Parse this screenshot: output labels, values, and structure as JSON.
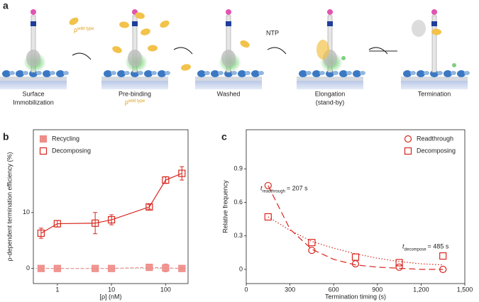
{
  "panels": [
    "a",
    "b",
    "c"
  ],
  "scheme": {
    "reagent": {
      "symbol": "ρ",
      "superscript": "wild type"
    },
    "ntp": "NTP",
    "steps": [
      {
        "label": [
          "Surface",
          "Immobilization"
        ]
      },
      {
        "label": [
          "Pre-binding"
        ]
      },
      {
        "label": [
          "Washed"
        ]
      },
      {
        "label": [
          "Elongation",
          "(stand-by)"
        ]
      },
      {
        "label": [
          "Termination"
        ]
      }
    ]
  },
  "chart_data": [
    {
      "type": "line",
      "x_label": "[ρ] (nM)",
      "y_label": "ρ-dependent termination efficiency (%)",
      "log_x": true,
      "xlim": [
        0.36,
        260
      ],
      "xticks": [
        1,
        10,
        100
      ],
      "ylim": [
        -2.7,
        24.8
      ],
      "yticks": [
        0,
        10
      ],
      "zero_line": true,
      "legend": "top-left",
      "x": [
        0.5,
        1,
        5,
        10,
        50,
        100,
        200
      ],
      "series": [
        {
          "name": "Recycling",
          "color": "#ef8c88",
          "marker": "square",
          "filled": true,
          "dash": "4 3",
          "values": [
            0,
            0,
            0,
            0,
            0.2,
            0.1,
            0
          ],
          "errors": [
            0.3,
            0,
            0,
            0,
            0.5,
            0.7,
            0.2
          ]
        },
        {
          "name": "Decomposing",
          "color": "#d7261e",
          "marker": "square",
          "filled": false,
          "values": [
            6.3,
            8,
            8.1,
            8.7,
            11,
            15.8,
            17
          ],
          "errors": [
            0.9,
            0.6,
            1.9,
            0.9,
            0.4,
            0.6,
            1.2
          ]
        }
      ]
    },
    {
      "type": "scatter",
      "x_label": "Termination timing (s)",
      "y_label": "Relative frequency",
      "xlim": [
        0,
        1500
      ],
      "xticks": [
        0,
        300,
        600,
        900,
        {
          "value": 1200,
          "label": "1,200"
        },
        {
          "value": 1500,
          "label": "1,500"
        }
      ],
      "ylim": [
        -0.127,
        1.25
      ],
      "yticks": [
        0,
        0.3,
        0.6,
        0.9
      ],
      "legend": "top-right",
      "x": [
        150,
        450,
        750,
        1050,
        1350
      ],
      "series": [
        {
          "name": "Readthrough",
          "color": "#d7261e",
          "marker": "circle",
          "filled": false,
          "values": [
            0.75,
            0.17,
            0.05,
            0.02,
            0.0
          ]
        },
        {
          "name": "Decomposing",
          "color": "#d7261e",
          "marker": "square",
          "filled": false,
          "values": [
            0.47,
            0.24,
            0.11,
            0.06,
            0.12
          ]
        }
      ],
      "fits": [
        {
          "color": "#d7261e",
          "dash": "9 5",
          "x": [
            150,
            300,
            450,
            600,
            750,
            900,
            1050,
            1200,
            1350
          ],
          "values": [
            0.75,
            0.36,
            0.18,
            0.09,
            0.04,
            0.02,
            0.01,
            0.0,
            0.0
          ]
        },
        {
          "color": "#d7261e",
          "dash": "1.5 2.5",
          "x": [
            150,
            300,
            450,
            600,
            750,
            900,
            1050,
            1200,
            1350
          ],
          "values": [
            0.47,
            0.35,
            0.25,
            0.19,
            0.14,
            0.1,
            0.07,
            0.05,
            0.04
          ]
        }
      ],
      "annotations": [
        {
          "symbol": "t",
          "subscript": "readthrough",
          "text": "= 207 s"
        },
        {
          "symbol": "t",
          "subscript": "decompose",
          "text": "= 485 s"
        }
      ]
    }
  ]
}
